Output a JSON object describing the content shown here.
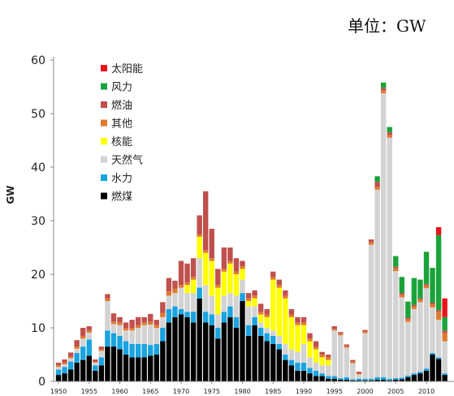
{
  "unit_label": "单位：GW",
  "chart_data": {
    "type": "bar",
    "stacked": true,
    "ylabel": "GW",
    "xlabel": "",
    "title": "",
    "ylim": [
      0,
      60
    ],
    "yticks": [
      0,
      10,
      20,
      30,
      40,
      50,
      60
    ],
    "xticks": [
      1950,
      1955,
      1960,
      1965,
      1970,
      1975,
      1980,
      1985,
      1990,
      1995,
      2000,
      2005,
      2010
    ],
    "grid": false,
    "legend_position": "top-left",
    "categories": [
      1950,
      1951,
      1952,
      1953,
      1954,
      1955,
      1956,
      1957,
      1958,
      1959,
      1960,
      1961,
      1962,
      1963,
      1964,
      1965,
      1966,
      1967,
      1968,
      1969,
      1970,
      1971,
      1972,
      1973,
      1974,
      1975,
      1976,
      1977,
      1978,
      1979,
      1980,
      1981,
      1982,
      1983,
      1984,
      1985,
      1986,
      1987,
      1988,
      1989,
      1990,
      1991,
      1992,
      1993,
      1994,
      1995,
      1996,
      1997,
      1998,
      1999,
      2000,
      2001,
      2002,
      2003,
      2004,
      2005,
      2006,
      2007,
      2008,
      2009,
      2010,
      2011,
      2012,
      2013
    ],
    "series": [
      {
        "name": "燃煤",
        "color": "#000000",
        "values": [
          1.2,
          1.5,
          2.2,
          3.5,
          4.0,
          4.8,
          2.0,
          3.0,
          6.5,
          6.5,
          6.0,
          5.0,
          4.5,
          4.5,
          4.5,
          4.8,
          5.0,
          7.5,
          11,
          12,
          12.5,
          12,
          11,
          15.5,
          11,
          10.5,
          8,
          11,
          12,
          10,
          15,
          8.5,
          10.5,
          8.5,
          7.5,
          7,
          6,
          4,
          3,
          2,
          2,
          1.5,
          1,
          1,
          0.5,
          0.5,
          0.3,
          0.3,
          0.2,
          0.2,
          0.2,
          0.2,
          0.3,
          0.3,
          0.2,
          0.3,
          0.4,
          0.8,
          1.2,
          1.5,
          2.0,
          5.0,
          4.2,
          1.2
        ]
      },
      {
        "name": "水力",
        "color": "#1aa3e0",
        "values": [
          1.0,
          1.2,
          1.5,
          1.8,
          2.5,
          3.0,
          1.0,
          1.5,
          3.0,
          2.5,
          2.5,
          2.5,
          2.5,
          2.5,
          2.5,
          2.0,
          2.0,
          2.5,
          2.5,
          2.0,
          1.0,
          1.0,
          2.0,
          2.0,
          2.0,
          2.0,
          2.0,
          2.0,
          2.0,
          2.0,
          1.5,
          2.0,
          1.5,
          1.5,
          1.5,
          1.5,
          1.0,
          1.0,
          1.0,
          1.5,
          1.5,
          1.0,
          1.0,
          0.5,
          0.5,
          0.5,
          0.3,
          0.5,
          0.2,
          0.3,
          0.3,
          0.3,
          0.5,
          0.5,
          0.3,
          0.3,
          0.3,
          0.3,
          0.3,
          0.3,
          0.4,
          0.3,
          0.3,
          0.3
        ]
      },
      {
        "name": "天然气",
        "color": "#d3d3d3",
        "values": [
          0.5,
          0.5,
          0.6,
          0.8,
          1.5,
          1.3,
          0.5,
          1.2,
          5.5,
          1.7,
          2.0,
          2.0,
          2.5,
          3.0,
          3.5,
          3.8,
          3.0,
          2.0,
          2.5,
          2.5,
          4.0,
          3.5,
          3.5,
          5.5,
          5.0,
          3.5,
          2.5,
          3.0,
          2.5,
          4.0,
          2.5,
          3.5,
          2.0,
          1.0,
          1.0,
          1.0,
          1.5,
          2.0,
          2.0,
          2.0,
          3.5,
          2.0,
          1.5,
          1.5,
          2.0,
          8.5,
          8.0,
          5.5,
          3.0,
          0.8,
          8.5,
          25,
          35,
          53,
          45,
          20,
          15,
          10,
          12,
          13,
          15,
          8.5,
          7,
          6
        ]
      },
      {
        "name": "核能",
        "color": "#ffff00",
        "values": [
          0,
          0,
          0,
          0,
          0,
          0,
          0,
          0,
          0,
          0,
          0,
          0,
          0,
          0,
          0,
          0,
          0,
          0,
          0,
          0,
          0,
          1.5,
          2.5,
          4.0,
          6.0,
          6.5,
          5.0,
          4.5,
          5.5,
          4.0,
          2.0,
          1.0,
          1.5,
          1.5,
          2.0,
          9.5,
          9.0,
          8.5,
          6.0,
          5.0,
          3.5,
          3.0,
          2.5,
          1.5,
          1.0,
          0,
          0,
          0,
          0,
          0,
          0,
          0,
          0,
          0,
          0,
          0,
          0,
          0,
          0,
          0,
          0,
          0,
          0,
          0
        ]
      },
      {
        "name": "其他",
        "color": "#e07a30",
        "values": [
          0.3,
          0.3,
          0.3,
          0.4,
          0.5,
          0.4,
          0.2,
          0.3,
          0.5,
          0.5,
          0.5,
          0.5,
          0.5,
          0.5,
          0.5,
          0.5,
          0.5,
          0.8,
          0.8,
          0.8,
          0.5,
          0.5,
          0.5,
          0.5,
          0.5,
          0.5,
          0.5,
          0.5,
          0.5,
          0.5,
          0.5,
          0.5,
          0.5,
          0.5,
          0.5,
          0.5,
          0.5,
          0.5,
          0.5,
          0.5,
          0.5,
          0.5,
          0.5,
          0.5,
          0.5,
          0.3,
          0.3,
          0.3,
          0.3,
          0.2,
          0.3,
          0.5,
          0.5,
          0.5,
          0.5,
          0.5,
          0.5,
          0.5,
          0.5,
          0.5,
          0.5,
          0.6,
          1.5,
          1.5
        ]
      },
      {
        "name": "燃油",
        "color": "#c0504d",
        "values": [
          0.5,
          0.6,
          0.8,
          1.2,
          1.5,
          0.8,
          0.4,
          0.5,
          0.8,
          1.5,
          1.0,
          1.0,
          1.5,
          1.5,
          1.0,
          1.5,
          1.0,
          2.0,
          2.5,
          1.5,
          4.5,
          3.5,
          3.5,
          3.5,
          11,
          5.5,
          3.0,
          4.0,
          2.5,
          2.5,
          1.0,
          1.0,
          1.0,
          1.5,
          1.0,
          1.0,
          1.0,
          1.0,
          1.0,
          1.0,
          1.0,
          1.0,
          1.0,
          0.5,
          0.5,
          0.5,
          0.3,
          0.3,
          0.3,
          0.3,
          0.3,
          0.5,
          1.0,
          0.5,
          0.5,
          0.3,
          0.3,
          0.3,
          0.3,
          0.2,
          0.3,
          0.3,
          0.3,
          0.5
        ]
      },
      {
        "name": "风力",
        "color": "#1aa33a",
        "values": [
          0,
          0,
          0,
          0,
          0,
          0,
          0,
          0,
          0,
          0,
          0,
          0,
          0,
          0,
          0,
          0,
          0,
          0,
          0,
          0,
          0,
          0,
          0,
          0,
          0,
          0,
          0,
          0,
          0,
          0,
          0,
          0,
          0,
          0,
          0,
          0,
          0,
          0,
          0,
          0,
          0,
          0,
          0,
          0,
          0,
          0,
          0,
          0,
          0,
          0,
          0,
          0,
          1.0,
          1.0,
          1.0,
          2.0,
          3.0,
          3.0,
          5.0,
          3.5,
          6.0,
          6.5,
          14,
          2.5
        ]
      },
      {
        "name": "太阳能",
        "color": "#e8141e",
        "values": [
          0,
          0,
          0,
          0,
          0,
          0,
          0,
          0,
          0,
          0,
          0,
          0,
          0,
          0,
          0,
          0,
          0,
          0,
          0,
          0,
          0,
          0,
          0,
          0,
          0,
          0,
          0,
          0,
          0,
          0,
          0,
          0,
          0,
          0,
          0,
          0,
          0,
          0,
          0,
          0,
          0,
          0,
          0,
          0,
          0,
          0,
          0,
          0,
          0,
          0,
          0,
          0,
          0,
          0,
          0,
          0,
          0,
          0,
          0,
          0,
          0,
          0,
          1.5,
          3.5
        ]
      }
    ],
    "legend": [
      "太阳能",
      "风力",
      "燃油",
      "其他",
      "核能",
      "天然气",
      "水力",
      "燃煤"
    ]
  }
}
